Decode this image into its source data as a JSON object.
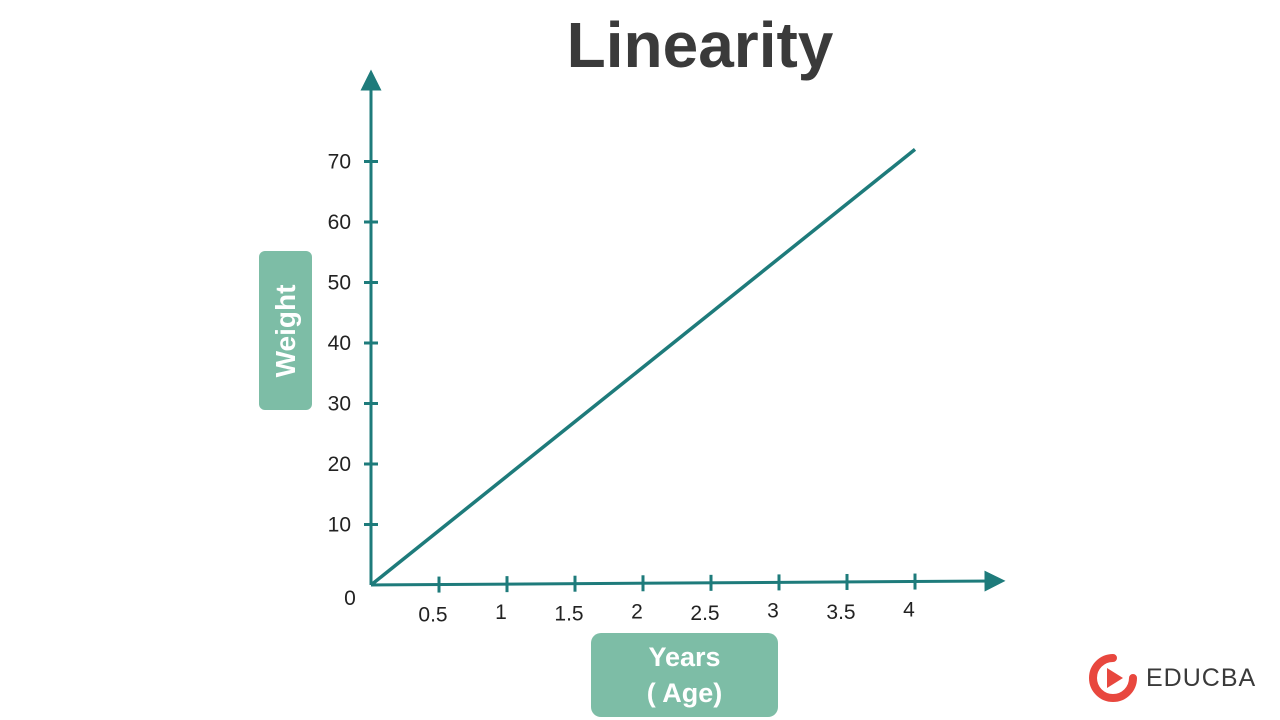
{
  "chart_data": {
    "type": "line",
    "title": "Linearity",
    "xlabel_line1": "Years",
    "xlabel_line2": "( Age)",
    "ylabel": "Weight",
    "origin_label": "0",
    "x_ticks": [
      "0.5",
      "1",
      "1.5",
      "2",
      "2.5",
      "3",
      "3.5",
      "4"
    ],
    "y_ticks": [
      "10",
      "20",
      "30",
      "40",
      "50",
      "60",
      "70"
    ],
    "x_tick_values": [
      0.5,
      1,
      1.5,
      2,
      2.5,
      3,
      3.5,
      4
    ],
    "y_tick_values": [
      10,
      20,
      30,
      40,
      50,
      60,
      70
    ],
    "xlim": [
      0,
      4.5
    ],
    "ylim": [
      0,
      78
    ],
    "grid": false,
    "series": [
      {
        "x": [
          0,
          4
        ],
        "y": [
          0,
          72
        ],
        "color": "#1e7b7b"
      }
    ]
  },
  "colors": {
    "axis": "#1e7b7b",
    "line": "#1e7b7b",
    "label_box": "#7dbda6",
    "title": "#3a3a3a"
  },
  "brand": {
    "name": "EDUCBA",
    "logo_icon": "play-logo-icon",
    "logo_color": "#e8473e"
  }
}
